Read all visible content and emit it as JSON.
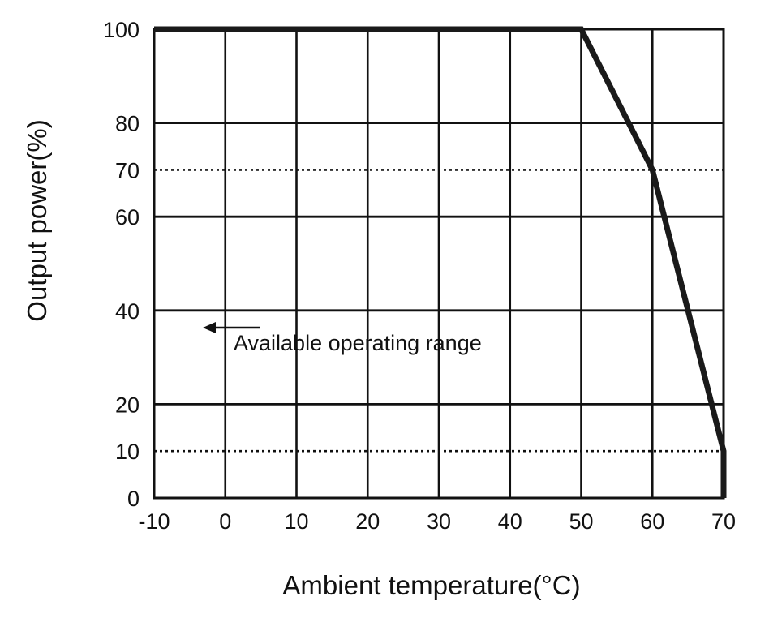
{
  "chart_data": {
    "type": "line",
    "xlabel": "Ambient temperature(°C)",
    "ylabel": "Output power(%)",
    "x_ticks": [
      "-10",
      "0",
      "10",
      "20",
      "30",
      "40",
      "50",
      "60",
      "70"
    ],
    "y_ticks": [
      "0",
      "10",
      "20",
      "40",
      "60",
      "70",
      "80",
      "100"
    ],
    "xlim": [
      -10,
      70
    ],
    "ylim": [
      0,
      100
    ],
    "grid": true,
    "dotted_reference_lines_y": [
      10,
      70
    ],
    "annotation": {
      "text": "Available operating range",
      "arrow": "left"
    },
    "series": [
      {
        "x": [
          -10,
          50,
          60,
          70,
          70
        ],
        "y": [
          100,
          100,
          70,
          10,
          0
        ],
        "color": "#1a1a1a"
      }
    ]
  }
}
